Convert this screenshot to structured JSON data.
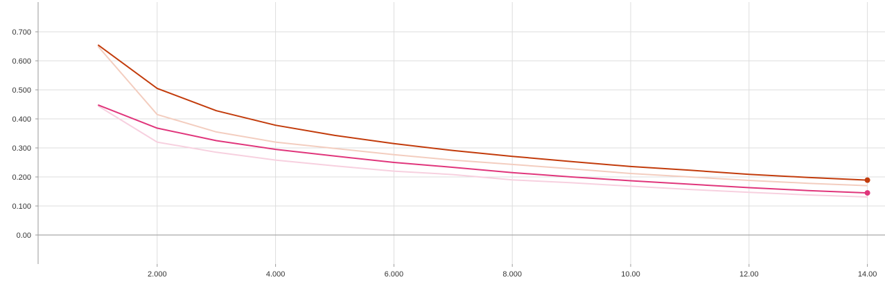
{
  "chart_data": {
    "type": "line",
    "title": "",
    "xlabel": "",
    "ylabel": "",
    "xlim": [
      0,
      14.15
    ],
    "ylim": [
      -0.1,
      0.8
    ],
    "grid": true,
    "x_ticks": [
      2,
      4,
      6,
      8,
      10,
      12,
      14
    ],
    "x_tick_labels": [
      "2.000",
      "4.000",
      "6.000",
      "8.000",
      "10.00",
      "12.00",
      "14.00"
    ],
    "y_ticks": [
      0,
      0.1,
      0.2,
      0.3,
      0.4,
      0.5,
      0.6,
      0.7
    ],
    "y_tick_labels": [
      "0.00",
      "0.100",
      "0.200",
      "0.300",
      "0.400",
      "0.500",
      "0.600",
      "0.700"
    ],
    "x": [
      1,
      2,
      3,
      4,
      5,
      6,
      7,
      8,
      9,
      10,
      11,
      12,
      13,
      14
    ],
    "series": [
      {
        "color": "#c23b0b",
        "raw_color": "#f3cdbf",
        "raw_values": [
          0.65,
          0.415,
          0.355,
          0.32,
          0.298,
          0.277,
          0.258,
          0.243,
          0.228,
          0.212,
          0.2,
          0.188,
          0.178,
          0.17
        ],
        "smoothed_values": [
          0.655,
          0.505,
          0.428,
          0.378,
          0.343,
          0.315,
          0.291,
          0.271,
          0.253,
          0.236,
          0.223,
          0.209,
          0.198,
          0.189
        ]
      },
      {
        "color": "#e0357b",
        "raw_color": "#f7d0df",
        "raw_values": [
          0.445,
          0.32,
          0.285,
          0.258,
          0.238,
          0.22,
          0.208,
          0.19,
          0.18,
          0.168,
          0.157,
          0.147,
          0.138,
          0.131
        ],
        "smoothed_values": [
          0.448,
          0.368,
          0.325,
          0.295,
          0.272,
          0.25,
          0.233,
          0.215,
          0.2,
          0.187,
          0.175,
          0.163,
          0.153,
          0.145
        ]
      }
    ]
  }
}
